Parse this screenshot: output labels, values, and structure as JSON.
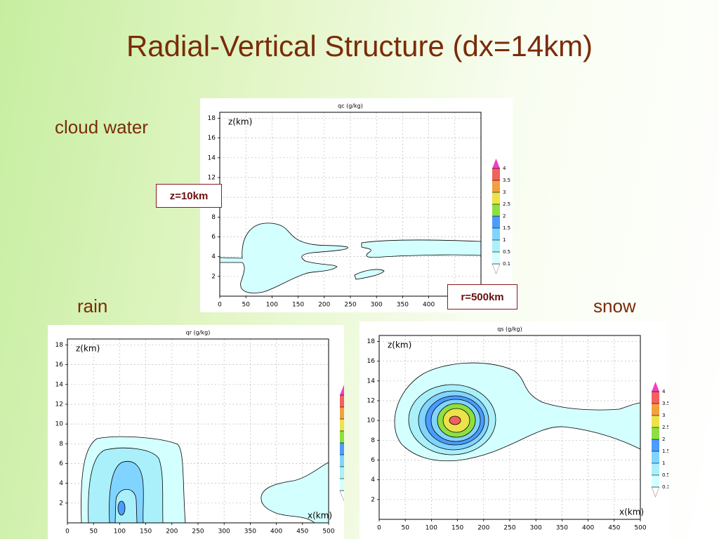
{
  "title": "Radial-Vertical Structure (dx=14km)",
  "labels": {
    "cloud_water": "cloud water",
    "rain": "rain",
    "snow": "snow"
  },
  "callouts": {
    "z": "z=10km",
    "r": "r=500km"
  },
  "plots": [
    {
      "title": "qc (g/kg)",
      "y_label": "z(km)"
    },
    {
      "title": "qr (g/kg)",
      "y_label": "z(km)",
      "x_label": "x(km)"
    },
    {
      "title": "qs (g/kg)",
      "y_label": "z(km)",
      "x_label": "x(km)"
    }
  ],
  "axes": {
    "xlim": [
      0,
      500
    ],
    "xticks": [
      0,
      50,
      100,
      150,
      200,
      250,
      300,
      350,
      400,
      450,
      500
    ],
    "ylim": [
      0,
      18.6
    ],
    "yticks": [
      2,
      4,
      6,
      8,
      10,
      12,
      14,
      16,
      18
    ],
    "grid": true
  },
  "colorbar": {
    "levels": [
      0.1,
      0.5,
      1,
      1.5,
      2,
      2.5,
      3,
      3.5,
      4
    ],
    "colors": [
      "#ffffff",
      "#d4ffff",
      "#aaf0fa",
      "#80d4ff",
      "#4a9cff",
      "#8ee040",
      "#ece24a",
      "#f4a040",
      "#f46060",
      "#f040c8"
    ]
  }
}
